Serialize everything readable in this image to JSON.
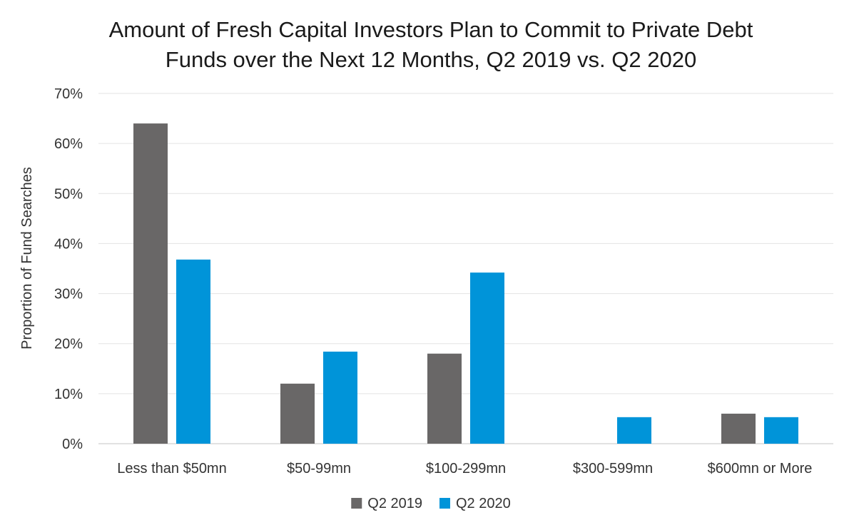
{
  "chart_data": {
    "type": "bar",
    "title_lines": [
      "Amount of Fresh Capital Investors Plan to Commit to Private Debt",
      "Funds over the Next 12 Months, Q2 2019 vs. Q2 2020"
    ],
    "xlabel": "",
    "ylabel": "Proportion of Fund Searches",
    "categories": [
      "Less than $50mn",
      "$50-99mn",
      "$100-299mn",
      "$300-599mn",
      "$600mn or More"
    ],
    "series": [
      {
        "name": "Q2 2019",
        "color": "#696767",
        "values": [
          64,
          12,
          18,
          0,
          6
        ]
      },
      {
        "name": "Q2 2020",
        "color": "#0094d9",
        "values": [
          36.8,
          18.4,
          34.2,
          5.3,
          5.3
        ]
      }
    ],
    "ylim": [
      0,
      70
    ],
    "yticks": [
      0,
      10,
      20,
      30,
      40,
      50,
      60,
      70
    ],
    "ytick_labels": [
      "0%",
      "10%",
      "20%",
      "30%",
      "40%",
      "50%",
      "60%",
      "70%"
    ],
    "grid": true,
    "legend_placement": "bottom-center"
  }
}
